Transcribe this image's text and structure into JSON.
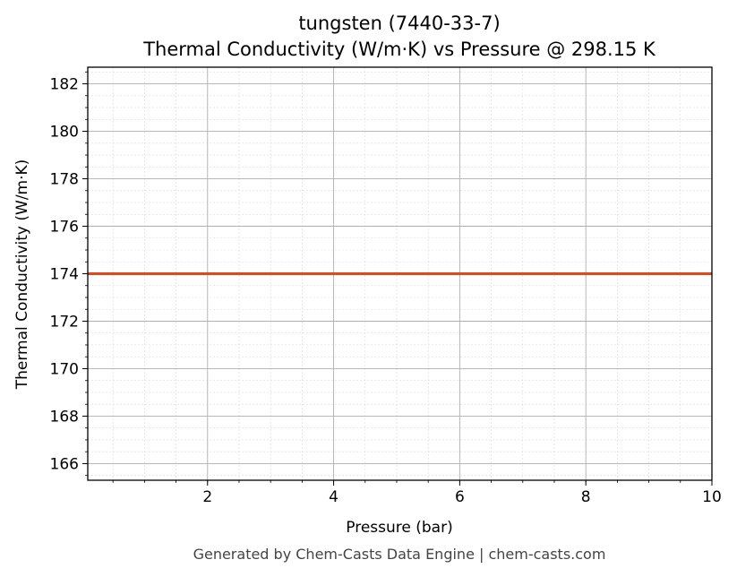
{
  "chart_data": {
    "type": "line",
    "title": "tungsten (7440-33-7)",
    "subtitle": "Thermal Conductivity (W/m·K) vs Pressure @ 298.15 K",
    "xlabel": "Pressure (bar)",
    "ylabel": "Thermal Conductivity (W/m·K)",
    "xlim": [
      0.1,
      10
    ],
    "ylim": [
      165.3,
      182.7
    ],
    "xticks": [
      2,
      4,
      6,
      8,
      10
    ],
    "yticks": [
      166,
      168,
      170,
      172,
      174,
      176,
      178,
      180,
      182
    ],
    "grid": true,
    "minor_grid": true,
    "series": [
      {
        "x": [
          0.1,
          10
        ],
        "y": [
          174,
          174
        ],
        "color": "#c8532a"
      }
    ],
    "footer": "Generated by Chem-Casts Data Engine | chem-casts.com"
  }
}
